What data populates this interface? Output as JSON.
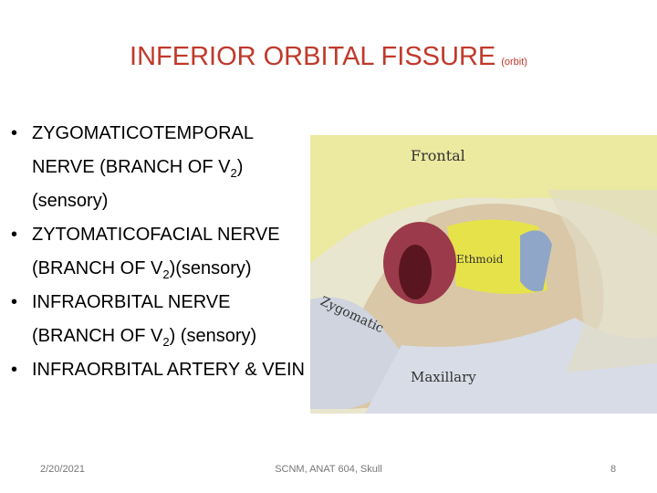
{
  "title": "INFERIOR ORBITAL FISSURE",
  "subtitle": "(orbit)",
  "bullets": [
    [
      "ZYGOMATICOTEMPORAL NERVE (BRANCH OF V",
      "2",
      ")(sensory)"
    ],
    [
      "ZYTOMATICOFACIAL NERVE (BRANCH OF V",
      "2",
      ")(sensory)"
    ],
    [
      "INFRAORBITAL NERVE (BRANCH OF V",
      "2",
      ") (sensory)"
    ],
    [
      "INFRAORBITAL ARTERY & VEIN"
    ]
  ],
  "image_labels": [
    "Frontal",
    "Ethmoid",
    "Zygomatic",
    "Maxillary"
  ],
  "footer": {
    "date": "2/20/2021",
    "center": "SCNM, ANAT 604, Skull",
    "page": "8"
  }
}
